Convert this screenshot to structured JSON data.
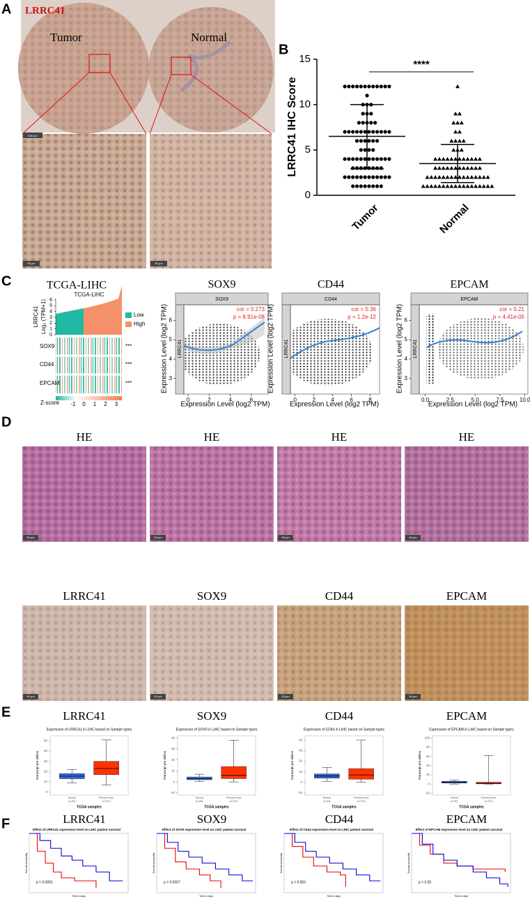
{
  "figure": {
    "panel_labels": [
      "A",
      "B",
      "C",
      "D",
      "E",
      "F"
    ],
    "A": {
      "gene": "LRRC41",
      "tumor": "Tumor",
      "normal": "Normal",
      "scale_bars": [
        "500 μm",
        "50 μm",
        "50 μm"
      ]
    },
    "C": {
      "heatmap_title": "TCGA-LIHC",
      "heatmap_subtitle": "TCGA-LIHC",
      "heatmap_ylabel": [
        "LRRC41",
        "Log₂ (TPM+1)"
      ],
      "heatmap_yticks": [
        0,
        1,
        2,
        3,
        4,
        5,
        6
      ],
      "legend": [
        "Low",
        "High"
      ],
      "rows": [
        "SOX9",
        "CD44",
        "EPCAM"
      ],
      "significance": [
        "***",
        "***",
        "***"
      ],
      "zscore_label": "Z-score",
      "zscore_ticks": [
        -1,
        0,
        1,
        2,
        3
      ],
      "scatter": [
        {
          "title": "SOX9",
          "strip": "SOX9",
          "ylabel": "LRRC41",
          "cor": "cor = 0.273",
          "p": "p = 8.91e-08",
          "xticks": [
            0,
            2,
            4,
            6
          ],
          "xlim": [
            -0.4,
            7.6
          ],
          "yticks": [
            3,
            4,
            5,
            6
          ],
          "ylim": [
            2.2,
            6.8
          ],
          "axis_x": "Expression Level (log2 TPM)",
          "axis_y": "Expression Level (log2 TPM)"
        },
        {
          "title": "CD44",
          "strip": "CD44",
          "ylabel": "LRRC41",
          "cor": "cor = 0.36",
          "p": "p = 1.2e-12",
          "xticks": [
            0,
            2,
            4,
            6,
            8
          ],
          "xlim": [
            -0.5,
            9
          ],
          "yticks": [],
          "ylim": [
            2.2,
            6.8
          ],
          "axis_x": "Expression Level (log2 TPM)",
          "axis_y": "Expression Level (log2 TPM)"
        },
        {
          "title": "EPCAM",
          "strip": "EPCAM",
          "ylabel": "LRRC41",
          "cor": "cor = 0.21",
          "p": "p = 4.41e-05",
          "xticks": [
            {
              "value": 0,
              "label": "0.0"
            },
            {
              "value": 2.5,
              "label": "2.5"
            },
            {
              "value": 5,
              "label": "5.0"
            },
            {
              "value": 7.5,
              "label": "7.5"
            },
            {
              "value": 10,
              "label": "10.0"
            }
          ],
          "xlim": [
            -0.6,
            10.3
          ],
          "yticks": [
            3,
            4,
            5,
            6
          ],
          "ylim": [
            2.2,
            6.8
          ],
          "axis_x": "Expression Level (log2 TPM)",
          "axis_y": "Expression Level (log2 TPM)"
        }
      ]
    },
    "D": {
      "row1": [
        "HE",
        "HE",
        "HE",
        "HE"
      ],
      "row2": [
        "LRRC41",
        "SOX9",
        "CD44",
        "EPCAM"
      ],
      "scale_bar": "50 μm"
    }
  },
  "chart_data": [
    {
      "type": "dotplot",
      "ylabel": "LRRC41 IHC Score",
      "annotation": "****",
      "ylim": [
        0,
        15
      ],
      "yticks": [
        0,
        5,
        10,
        15
      ],
      "series": [
        {
          "name": "Tumor",
          "marker": "circle",
          "mean": 6.5,
          "sd_low": 2.9,
          "sd_high": 10,
          "values": [
            12,
            12,
            12,
            12,
            12,
            12,
            12,
            12,
            12,
            12,
            12,
            12,
            11,
            10,
            10,
            10,
            9,
            9,
            9,
            8,
            8,
            8,
            8,
            8,
            7,
            7,
            7,
            7,
            7,
            7,
            7,
            7,
            7,
            7,
            7,
            7,
            6,
            6,
            6,
            6,
            6,
            6,
            5,
            5,
            5,
            5,
            4,
            4,
            4,
            4,
            4,
            4,
            4,
            4,
            4,
            4,
            4,
            4,
            3,
            3,
            3,
            3,
            3,
            3,
            3,
            3,
            2,
            2,
            2,
            2,
            2,
            2,
            2,
            2,
            2,
            2,
            2,
            2,
            1,
            1,
            1,
            1,
            1,
            1,
            1,
            1
          ]
        },
        {
          "name": "Normal",
          "marker": "triangle",
          "mean": 3.5,
          "sd_low": 1.4,
          "sd_high": 5.6,
          "values": [
            12,
            9,
            9,
            8,
            8,
            8,
            7,
            7,
            6,
            6,
            6,
            6,
            5,
            5,
            5,
            4,
            4,
            4,
            4,
            4,
            4,
            4,
            4,
            4,
            4,
            4,
            4,
            3,
            3,
            3,
            3,
            3,
            3,
            3,
            3,
            3,
            3,
            3,
            3,
            2,
            2,
            2,
            2,
            2,
            2,
            2,
            2,
            2,
            2,
            2,
            2,
            2,
            2,
            2,
            2,
            1,
            1,
            1,
            1,
            1,
            1,
            1,
            1,
            1,
            1,
            1,
            1,
            1,
            1,
            1,
            1,
            1,
            1
          ]
        }
      ]
    },
    {
      "type": "box",
      "heading": "LRRC41",
      "title": "Expression of LRRC41 in LIHC based on Sample types",
      "ylabel": "Transcript per million",
      "xlabel": "TCGA samples",
      "categories": [
        "Normal",
        "Primary tumor"
      ],
      "category_notes": [
        "(n=50)",
        "(n=371)"
      ],
      "colors": [
        "#3366dd",
        "#ff3300"
      ],
      "min": [
        9,
        7
      ],
      "q1": [
        13,
        17
      ],
      "median": [
        15.5,
        23
      ],
      "q3": [
        18,
        30
      ],
      "max": [
        22,
        51
      ],
      "ylim": [
        -3,
        55
      ],
      "yticks": [
        0,
        10,
        20,
        30,
        40,
        50
      ]
    },
    {
      "type": "box",
      "heading": "SOX9",
      "title": "Expression of SOX9 in LIHC based on Sample types",
      "ylabel": "Transcript per million",
      "xlabel": "TCGA samples",
      "categories": [
        "Normal",
        "Primary tumor"
      ],
      "category_notes": [
        "(n=50)",
        "(n=371)"
      ],
      "colors": [
        "#3366dd",
        "#ff3300"
      ],
      "min": [
        0.5,
        0
      ],
      "q1": [
        2,
        3
      ],
      "median": [
        3,
        6
      ],
      "q3": [
        4.5,
        14
      ],
      "max": [
        7,
        38
      ],
      "ylim": [
        -12,
        42
      ],
      "yticks": [
        -10,
        0,
        10,
        20,
        30,
        40
      ]
    },
    {
      "type": "box",
      "heading": "CD44",
      "title": "Expression of CD44 in LIHC based on Sample types",
      "ylabel": "Transcript per million",
      "xlabel": "TCGA samples",
      "categories": [
        "Normal",
        "Primary tumor"
      ],
      "category_notes": [
        "(n=50)",
        "(n=371)"
      ],
      "colors": [
        "#3366dd",
        "#ff3300"
      ],
      "min": [
        1,
        0
      ],
      "q1": [
        4,
        3
      ],
      "median": [
        6,
        7
      ],
      "q3": [
        8,
        13
      ],
      "max": [
        14,
        40
      ],
      "ylim": [
        -12,
        44
      ],
      "yticks": [
        -10,
        0,
        10,
        20,
        30,
        40
      ]
    },
    {
      "type": "box",
      "heading": "EPCAM",
      "title": "Expression of EPCAM in LIHC based on Sample types",
      "ylabel": "Transcript per million",
      "xlabel": "TCGA samples",
      "categories": [
        "Normal",
        "Primary tumor"
      ],
      "category_notes": [
        "(n=50)",
        "(n=371)"
      ],
      "colors": [
        "#3366dd",
        "#ff3300"
      ],
      "min": [
        0,
        0
      ],
      "q1": [
        2,
        0.5
      ],
      "median": [
        4,
        1.5
      ],
      "q3": [
        6,
        4
      ],
      "max": [
        9,
        62
      ],
      "ylim": [
        -24,
        105
      ],
      "yticks": [
        -20,
        0,
        20,
        40,
        60,
        80,
        100
      ]
    },
    {
      "type": "survival",
      "heading": "LRRC41",
      "title": "Effect of LRRC41 expression level on LIHC patient survival",
      "ylabel": "Survival probability",
      "xlabel": "Time in days",
      "annotation": "p = 0.0001",
      "xlim": [
        0,
        3700
      ],
      "ylim": [
        0,
        1
      ],
      "series": [
        {
          "color": "#ee0000",
          "x": [
            0,
            300,
            600,
            900,
            1200,
            1700,
            2300,
            2500
          ],
          "values": [
            1,
            0.7,
            0.5,
            0.35,
            0.25,
            0.2,
            0.2,
            0.08
          ]
        },
        {
          "color": "#0000dd",
          "x": [
            0,
            400,
            800,
            1200,
            1600,
            2000,
            2500,
            3000,
            3500
          ],
          "values": [
            1,
            0.88,
            0.75,
            0.62,
            0.55,
            0.45,
            0.35,
            0.2,
            0.2
          ]
        }
      ]
    },
    {
      "type": "survival",
      "heading": "SOX9",
      "title": "Effect of SOX9 expression level on LIHC patient survival",
      "ylabel": "Survival probability",
      "xlabel": "Time in days",
      "annotation": "p = 0.0057",
      "xlim": [
        0,
        3700
      ],
      "ylim": [
        0,
        1
      ],
      "series": [
        {
          "color": "#ee0000",
          "x": [
            0,
            300,
            700,
            1100,
            1600,
            2000,
            2400
          ],
          "values": [
            1,
            0.75,
            0.52,
            0.4,
            0.3,
            0.2,
            0.08
          ]
        },
        {
          "color": "#0000dd",
          "x": [
            0,
            400,
            800,
            1200,
            1700,
            2200,
            2700,
            3200,
            3600
          ],
          "values": [
            1,
            0.85,
            0.7,
            0.6,
            0.5,
            0.4,
            0.3,
            0.2,
            0.2
          ]
        }
      ]
    },
    {
      "type": "survival",
      "heading": "CD44",
      "title": "Effect of CD44 expression level on LIHC patient survival",
      "ylabel": "Survival probability",
      "xlabel": "Time in days",
      "annotation": "p = 0.053",
      "xlim": [
        0,
        3700
      ],
      "ylim": [
        0,
        1
      ],
      "series": [
        {
          "color": "#ee0000",
          "x": [
            0,
            300,
            700,
            1100,
            1600,
            2100,
            2300
          ],
          "values": [
            1,
            0.78,
            0.6,
            0.45,
            0.35,
            0.3,
            0.1
          ]
        },
        {
          "color": "#0000dd",
          "x": [
            0,
            400,
            800,
            1200,
            1700,
            2200,
            2700,
            3200,
            3600
          ],
          "values": [
            1,
            0.85,
            0.7,
            0.6,
            0.5,
            0.4,
            0.3,
            0.2,
            0.2
          ]
        }
      ]
    },
    {
      "type": "survival",
      "heading": "EPCAM",
      "title": "Effect of EPCAM expression level on LIHC patient survival",
      "ylabel": "Survival probability",
      "xlabel": "Time in days",
      "annotation": "p = 0.55",
      "xlim": [
        0,
        3700
      ],
      "ylim": [
        0,
        1
      ],
      "series": [
        {
          "color": "#ee0000",
          "x": [
            0,
            300,
            700,
            1200,
            1700,
            2300,
            3500
          ],
          "values": [
            1,
            0.8,
            0.65,
            0.5,
            0.45,
            0.4,
            0.35
          ]
        },
        {
          "color": "#0000dd",
          "x": [
            0,
            400,
            800,
            1200,
            1700,
            2300,
            2800,
            3300,
            3600
          ],
          "values": [
            1,
            0.82,
            0.65,
            0.55,
            0.45,
            0.35,
            0.25,
            0.15,
            0.1
          ]
        }
      ]
    }
  ]
}
